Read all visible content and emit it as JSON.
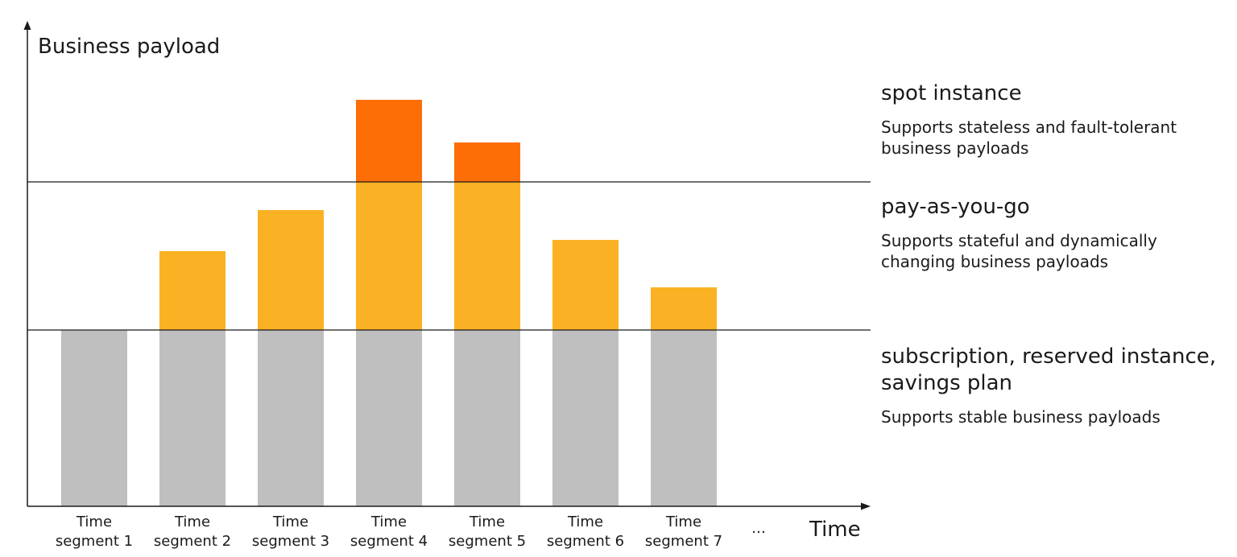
{
  "chart_data": {
    "type": "bar",
    "stacked": true,
    "ylabel": "Business payload",
    "xlabel": "Time",
    "trailing_category": "…",
    "categories": [
      "Time segment 1",
      "Time segment 2",
      "Time segment 3",
      "Time segment 4",
      "Time segment 5",
      "Time segment 6",
      "Time segment 7"
    ],
    "series": [
      {
        "key": "stable",
        "color": "#bfbfbf",
        "values": [
          219,
          219,
          219,
          219,
          219,
          219,
          219
        ]
      },
      {
        "key": "payg",
        "color": "#fbb124",
        "values": [
          0,
          98,
          149,
          184,
          184,
          112,
          53
        ]
      },
      {
        "key": "spot",
        "color": "#fd6e06",
        "values": [
          0,
          0,
          0,
          102,
          49,
          0,
          0
        ]
      }
    ],
    "threshold_lines": [
      219,
      403
    ],
    "ylim": [
      0,
      600
    ],
    "grid": false,
    "legend_placement": "right"
  },
  "tiers": [
    {
      "title": "spot instance",
      "description": "Supports stateless and fault-tolerant business payloads"
    },
    {
      "title": "pay-as-you-go",
      "description": "Supports stateful and dynamically changing business payloads"
    },
    {
      "title": "subscription, reserved instance, savings plan",
      "description": "Supports stable business payloads"
    }
  ]
}
